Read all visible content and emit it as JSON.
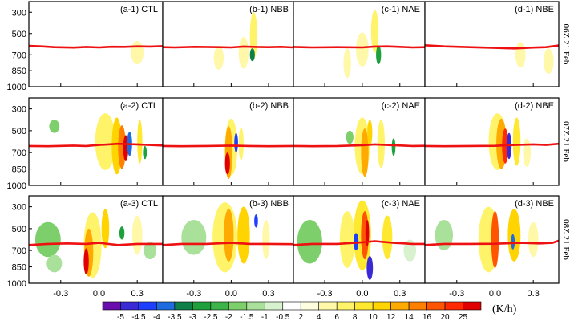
{
  "chart_data": {
    "type": "heatmap",
    "units": "(K/h)",
    "y_ticks": [
      "300",
      "500",
      "700",
      "850",
      "1000"
    ],
    "y_tick_values": [
      300,
      500,
      700,
      850,
      1000
    ],
    "ylim": [
      200,
      1000
    ],
    "x_ticks": [
      "-0.3",
      "0.0",
      "0.3"
    ],
    "x_tick_values": [
      -0.3,
      0.0,
      0.3
    ],
    "xlim": [
      -0.55,
      0.5
    ],
    "row_labels": [
      "06Z 21 Feb",
      "07Z 21 Feb",
      "08Z 21 Feb"
    ],
    "experiments": [
      "CTL",
      "NBB",
      "NAE",
      "NBE"
    ],
    "panel_labels": [
      [
        "(a-1) CTL",
        "(b-1) NBB",
        "(c-1) NAE",
        "(d-1) NBE"
      ],
      [
        "(a-2) CTL",
        "(b-2) NBB",
        "(c-2) NAE",
        "(d-2) NBE"
      ],
      [
        "(a-3) CTL",
        "(b-3) NBB",
        "(c-3) NAE",
        "(d-3) NBE"
      ]
    ],
    "colorbar": {
      "labels": [
        "-5",
        "-4.5",
        "-4",
        "-3.5",
        "-3",
        "-2.5",
        "-2",
        "-1.5",
        "-1",
        "-0.5",
        "2",
        "4",
        "6",
        "8",
        "10",
        "12",
        "14",
        "16",
        "20",
        "25"
      ],
      "colors": [
        "#6a0dad",
        "#3a2ad6",
        "#1f3fff",
        "#1e6be0",
        "#0f7f4a",
        "#1ea03c",
        "#3cb44a",
        "#7ccf6a",
        "#a9e09a",
        "#d8f2d0",
        "#ffffff",
        "#fffde0",
        "#fff8a8",
        "#fff36a",
        "#ffe830",
        "#ffd400",
        "#ffaa00",
        "#ff8000",
        "#ff5500",
        "#ff2a00",
        "#e00000"
      ]
    },
    "zero_line": {
      "color": "#ee1111",
      "pressure_hPa": [
        [
          [
            -0.55,
            615
          ],
          [
            -0.45,
            620
          ],
          [
            -0.35,
            628
          ],
          [
            -0.2,
            632
          ],
          [
            -0.1,
            626
          ],
          [
            0.0,
            630
          ],
          [
            0.1,
            624
          ],
          [
            0.2,
            625
          ],
          [
            0.3,
            620
          ],
          [
            0.4,
            622
          ],
          [
            0.5,
            618
          ]
        ],
        [
          [
            -0.55,
            628
          ],
          [
            -0.45,
            630
          ],
          [
            -0.3,
            625
          ],
          [
            -0.1,
            628
          ],
          [
            0.0,
            630
          ],
          [
            0.1,
            622
          ],
          [
            0.2,
            626
          ],
          [
            0.3,
            628
          ],
          [
            0.4,
            625
          ],
          [
            0.5,
            630
          ]
        ],
        [
          [
            -0.55,
            626
          ],
          [
            -0.4,
            630
          ],
          [
            -0.2,
            628
          ],
          [
            0.0,
            630
          ],
          [
            0.1,
            622
          ],
          [
            0.2,
            620
          ],
          [
            0.3,
            625
          ],
          [
            0.4,
            630
          ],
          [
            0.5,
            628
          ]
        ],
        [
          [
            -0.55,
            610
          ],
          [
            -0.4,
            620
          ],
          [
            -0.2,
            628
          ],
          [
            0.0,
            635
          ],
          [
            0.15,
            640
          ],
          [
            0.3,
            632
          ],
          [
            0.4,
            628
          ],
          [
            0.5,
            612
          ]
        ],
        [
          [
            -0.55,
            640
          ],
          [
            -0.4,
            642
          ],
          [
            -0.2,
            636
          ],
          [
            -0.1,
            640
          ],
          [
            0.0,
            630
          ],
          [
            0.15,
            620
          ],
          [
            0.3,
            625
          ],
          [
            0.5,
            635
          ]
        ],
        [
          [
            -0.55,
            640
          ],
          [
            -0.4,
            642
          ],
          [
            -0.2,
            640
          ],
          [
            0.0,
            636
          ],
          [
            0.15,
            640
          ],
          [
            0.3,
            642
          ],
          [
            0.5,
            640
          ]
        ],
        [
          [
            -0.55,
            640
          ],
          [
            -0.4,
            642
          ],
          [
            -0.2,
            640
          ],
          [
            0.0,
            632
          ],
          [
            0.1,
            625
          ],
          [
            0.25,
            632
          ],
          [
            0.4,
            640
          ],
          [
            0.5,
            638
          ]
        ],
        [
          [
            -0.55,
            640
          ],
          [
            -0.4,
            642
          ],
          [
            -0.2,
            640
          ],
          [
            0.0,
            638
          ],
          [
            0.15,
            630
          ],
          [
            0.3,
            625
          ],
          [
            0.4,
            630
          ],
          [
            0.5,
            620
          ]
        ],
        [
          [
            -0.55,
            650
          ],
          [
            -0.4,
            640
          ],
          [
            -0.25,
            635
          ],
          [
            -0.1,
            640
          ],
          [
            0.0,
            630
          ],
          [
            0.15,
            650
          ],
          [
            0.3,
            640
          ],
          [
            0.5,
            640
          ]
        ],
        [
          [
            -0.55,
            650
          ],
          [
            -0.4,
            640
          ],
          [
            -0.2,
            640
          ],
          [
            0.0,
            630
          ],
          [
            0.15,
            640
          ],
          [
            0.3,
            640
          ],
          [
            0.5,
            642
          ]
        ],
        [
          [
            -0.55,
            650
          ],
          [
            -0.4,
            640
          ],
          [
            -0.2,
            640
          ],
          [
            0.0,
            625
          ],
          [
            0.1,
            615
          ],
          [
            0.25,
            630
          ],
          [
            0.4,
            640
          ],
          [
            0.5,
            640
          ]
        ],
        [
          [
            -0.55,
            650
          ],
          [
            -0.4,
            640
          ],
          [
            -0.2,
            640
          ],
          [
            0.0,
            638
          ],
          [
            0.2,
            630
          ],
          [
            0.35,
            635
          ],
          [
            0.45,
            630
          ],
          [
            0.5,
            610
          ]
        ]
      ]
    },
    "blobs": [
      [
        [
          {
            "x": 0.3,
            "p": 680,
            "rx": 0.05,
            "rp": 110,
            "c": "#fff8a8"
          }
        ]
      ],
      [
        [
          {
            "x": 0.1,
            "p": 680,
            "rx": 0.04,
            "rp": 150,
            "c": "#fff8a8"
          },
          {
            "x": 0.18,
            "p": 520,
            "rx": 0.03,
            "rp": 220,
            "c": "#fff36a"
          },
          {
            "x": 0.17,
            "p": 700,
            "rx": 0.02,
            "rp": 60,
            "c": "#0f7f4a"
          },
          {
            "x": -0.1,
            "p": 730,
            "rx": 0.04,
            "rp": 110,
            "c": "#fff8a8"
          }
        ]
      ],
      [
        [
          {
            "x": 0.0,
            "p": 650,
            "rx": 0.05,
            "rp": 160,
            "c": "#fff8a8"
          },
          {
            "x": 0.1,
            "p": 480,
            "rx": 0.03,
            "rp": 200,
            "c": "#fff36a"
          },
          {
            "x": 0.13,
            "p": 700,
            "rx": 0.02,
            "rp": 90,
            "c": "#1ea03c"
          },
          {
            "x": -0.12,
            "p": 780,
            "rx": 0.03,
            "rp": 140,
            "c": "#fff8a8"
          }
        ]
      ],
      [
        [
          {
            "x": 0.2,
            "p": 700,
            "rx": 0.04,
            "rp": 120,
            "c": "#fff8a8"
          },
          {
            "x": 0.42,
            "p": 760,
            "rx": 0.04,
            "rp": 120,
            "c": "#fff8a8"
          }
        ]
      ],
      [
        [
          {
            "x": -0.35,
            "p": 460,
            "rx": 0.04,
            "rp": 60,
            "c": "#7ccf6a"
          },
          {
            "x": 0.05,
            "p": 600,
            "rx": 0.08,
            "rp": 260,
            "c": "#fff36a"
          },
          {
            "x": 0.14,
            "p": 640,
            "rx": 0.04,
            "rp": 260,
            "c": "#ffd400"
          },
          {
            "x": 0.18,
            "p": 650,
            "rx": 0.03,
            "rp": 200,
            "c": "#ff8000"
          },
          {
            "x": 0.21,
            "p": 660,
            "rx": 0.02,
            "rp": 120,
            "c": "#e00000"
          },
          {
            "x": 0.24,
            "p": 620,
            "rx": 0.02,
            "rp": 110,
            "c": "#1e6be0"
          },
          {
            "x": 0.32,
            "p": 600,
            "rx": 0.02,
            "rp": 200,
            "c": "#ffe830"
          },
          {
            "x": 0.36,
            "p": 700,
            "rx": 0.015,
            "rp": 60,
            "c": "#1ea03c"
          }
        ]
      ],
      [
        [
          {
            "x": 0.0,
            "p": 650,
            "rx": 0.05,
            "rp": 260,
            "c": "#fff36a"
          },
          {
            "x": -0.02,
            "p": 700,
            "rx": 0.03,
            "rp": 240,
            "c": "#ffaa00"
          },
          {
            "x": -0.03,
            "p": 800,
            "rx": 0.02,
            "rp": 100,
            "c": "#e00000"
          },
          {
            "x": 0.04,
            "p": 610,
            "rx": 0.015,
            "rp": 90,
            "c": "#1f3fff"
          },
          {
            "x": 0.08,
            "p": 620,
            "rx": 0.02,
            "rp": 150,
            "c": "#fff36a"
          }
        ]
      ],
      [
        [
          {
            "x": -0.1,
            "p": 560,
            "rx": 0.03,
            "rp": 60,
            "c": "#7ccf6a"
          },
          {
            "x": 0.0,
            "p": 640,
            "rx": 0.06,
            "rp": 260,
            "c": "#fff36a"
          },
          {
            "x": 0.02,
            "p": 700,
            "rx": 0.03,
            "rp": 220,
            "c": "#ffaa00"
          },
          {
            "x": 0.06,
            "p": 520,
            "rx": 0.02,
            "rp": 120,
            "c": "#ffd400"
          },
          {
            "x": 0.15,
            "p": 620,
            "rx": 0.03,
            "rp": 220,
            "c": "#fff36a"
          },
          {
            "x": 0.25,
            "p": 650,
            "rx": 0.015,
            "rp": 80,
            "c": "#1ea03c"
          }
        ]
      ],
      [
        [
          {
            "x": 0.02,
            "p": 600,
            "rx": 0.07,
            "rp": 260,
            "c": "#fff36a"
          },
          {
            "x": 0.05,
            "p": 620,
            "rx": 0.04,
            "rp": 230,
            "c": "#ffaa00"
          },
          {
            "x": 0.08,
            "p": 640,
            "rx": 0.025,
            "rp": 160,
            "c": "#ff2a00"
          },
          {
            "x": 0.11,
            "p": 640,
            "rx": 0.02,
            "rp": 120,
            "c": "#3a2ad6"
          },
          {
            "x": 0.17,
            "p": 600,
            "rx": 0.03,
            "rp": 220,
            "c": "#ffe830"
          },
          {
            "x": 0.25,
            "p": 700,
            "rx": 0.03,
            "rp": 130,
            "c": "#fff8a8"
          }
        ]
      ],
      [
        [
          {
            "x": -0.4,
            "p": 600,
            "rx": 0.1,
            "rp": 160,
            "c": "#7ccf6a"
          },
          {
            "x": -0.35,
            "p": 820,
            "rx": 0.06,
            "rp": 80,
            "c": "#a9e09a"
          },
          {
            "x": -0.05,
            "p": 650,
            "rx": 0.07,
            "rp": 300,
            "c": "#fff36a"
          },
          {
            "x": -0.08,
            "p": 720,
            "rx": 0.035,
            "rp": 220,
            "c": "#ffaa00"
          },
          {
            "x": -0.1,
            "p": 800,
            "rx": 0.02,
            "rp": 120,
            "c": "#e00000"
          },
          {
            "x": 0.05,
            "p": 500,
            "rx": 0.03,
            "rp": 180,
            "c": "#ffd400"
          },
          {
            "x": 0.18,
            "p": 540,
            "rx": 0.02,
            "rp": 60,
            "c": "#1ea03c"
          },
          {
            "x": 0.3,
            "p": 560,
            "rx": 0.04,
            "rp": 180,
            "c": "#fff8a8"
          },
          {
            "x": 0.4,
            "p": 700,
            "rx": 0.05,
            "rp": 80,
            "c": "#a9e09a"
          }
        ]
      ],
      [
        [
          {
            "x": -0.3,
            "p": 580,
            "rx": 0.1,
            "rp": 160,
            "c": "#a9e09a"
          },
          {
            "x": -0.05,
            "p": 580,
            "rx": 0.1,
            "rp": 320,
            "c": "#fff36a"
          },
          {
            "x": -0.02,
            "p": 560,
            "rx": 0.04,
            "rp": 240,
            "c": "#ffaa00"
          },
          {
            "x": 0.1,
            "p": 560,
            "rx": 0.05,
            "rp": 260,
            "c": "#ffd400"
          },
          {
            "x": 0.2,
            "p": 430,
            "rx": 0.015,
            "rp": 60,
            "c": "#1f3fff"
          },
          {
            "x": 0.28,
            "p": 600,
            "rx": 0.03,
            "rp": 180,
            "c": "#fff8a8"
          }
        ]
      ],
      [
        [
          {
            "x": -0.42,
            "p": 620,
            "rx": 0.1,
            "rp": 200,
            "c": "#7ccf6a"
          },
          {
            "x": -0.12,
            "p": 600,
            "rx": 0.06,
            "rp": 260,
            "c": "#fff36a"
          },
          {
            "x": 0.0,
            "p": 560,
            "rx": 0.07,
            "rp": 320,
            "c": "#ffe830"
          },
          {
            "x": 0.02,
            "p": 560,
            "rx": 0.03,
            "rp": 220,
            "c": "#ff5500"
          },
          {
            "x": 0.04,
            "p": 540,
            "rx": 0.015,
            "rp": 120,
            "c": "#e00000"
          },
          {
            "x": -0.05,
            "p": 620,
            "rx": 0.02,
            "rp": 80,
            "c": "#1f3fff"
          },
          {
            "x": 0.06,
            "p": 860,
            "rx": 0.025,
            "rp": 110,
            "c": "#3a2ad6"
          },
          {
            "x": 0.2,
            "p": 580,
            "rx": 0.04,
            "rp": 200,
            "c": "#ffe830"
          },
          {
            "x": 0.38,
            "p": 700,
            "rx": 0.05,
            "rp": 100,
            "c": "#d8f2d0"
          }
        ]
      ],
      [
        [
          {
            "x": -0.4,
            "p": 560,
            "rx": 0.07,
            "rp": 140,
            "c": "#a9e09a"
          },
          {
            "x": -0.05,
            "p": 600,
            "rx": 0.08,
            "rp": 300,
            "c": "#fff36a"
          },
          {
            "x": 0.0,
            "p": 600,
            "rx": 0.03,
            "rp": 260,
            "c": "#ff5500"
          },
          {
            "x": 0.15,
            "p": 560,
            "rx": 0.05,
            "rp": 240,
            "c": "#ffd400"
          },
          {
            "x": 0.14,
            "p": 620,
            "rx": 0.015,
            "rp": 70,
            "c": "#1e6be0"
          },
          {
            "x": 0.3,
            "p": 600,
            "rx": 0.04,
            "rp": 160,
            "c": "#fff8a8"
          }
        ]
      ]
    ]
  }
}
